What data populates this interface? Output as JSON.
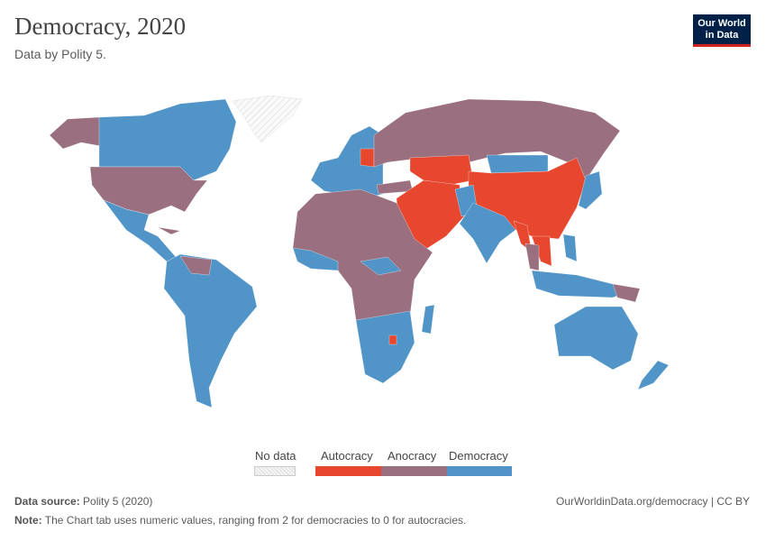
{
  "header": {
    "title": "Democracy, 2020",
    "subtitle": "Data by Polity 5.",
    "logo_text": "Our World in Data",
    "logo_line1": "Our World",
    "logo_line2": "in Data"
  },
  "legend": {
    "no_data": {
      "label": "No data",
      "color": "#ffffff"
    },
    "items": [
      {
        "label": "Autocracy",
        "color": "#e6472e"
      },
      {
        "label": "Anocracy",
        "color": "#9a6f7f"
      },
      {
        "label": "Democracy",
        "color": "#5195c8"
      }
    ]
  },
  "footer": {
    "source_label": "Data source:",
    "source_value": "Polity 5 (2020)",
    "url": "OurWorldinData.org/democracy | CC BY",
    "note_label": "Note:",
    "note_value": "The Chart tab uses numeric values, ranging from 2 for democracies to 0 for autocracies."
  }
}
